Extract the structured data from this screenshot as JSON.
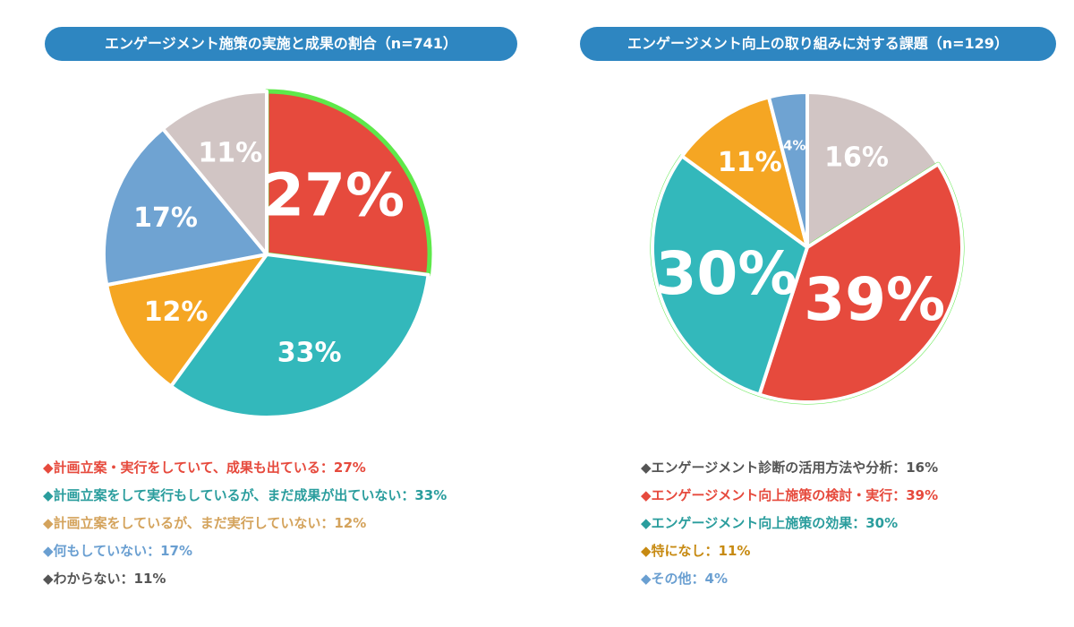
{
  "chart_data": [
    {
      "type": "pie",
      "title": "エンゲージメント施策の実施と成果の割合（n=741）",
      "slices": [
        {
          "label": "計画立案・実行をしていて、成果も出ている",
          "value": 27,
          "value_label": "27%",
          "legend_text": "◆計画立案・実行をしていて、成果も出ている：27%",
          "color": "#e64a3d",
          "text_color": "#e64a3d",
          "highlight": true,
          "big": true
        },
        {
          "label": "計画立案をして実行もしているが、まだ成果が出ていない",
          "value": 33,
          "value_label": "33%",
          "legend_text": "◆計画立案をして実行もしているが、まだ成果が出ていない：33%",
          "color": "#33b8bb",
          "text_color": "#2a9d9d",
          "highlight": false,
          "big": false
        },
        {
          "label": "計画立案をしているが、まだ実行していない",
          "value": 12,
          "value_label": "12%",
          "legend_text": "◆計画立案をしているが、まだ実行していない：12%",
          "color": "#f5a623",
          "text_color": "#d4a35c",
          "highlight": false,
          "big": false
        },
        {
          "label": "何もしていない",
          "value": 17,
          "value_label": "17%",
          "legend_text": "◆何もしていない：17%",
          "color": "#6fa3d2",
          "text_color": "#6a9fd1",
          "highlight": false,
          "big": false
        },
        {
          "label": "わからない",
          "value": 11,
          "value_label": "11%",
          "legend_text": "◆わからない：11%",
          "color": "#d1c5c4",
          "text_color": "#555555",
          "highlight": false,
          "big": false
        }
      ]
    },
    {
      "type": "pie",
      "title": "エンゲージメント向上の取り組みに対する課題（n=129）",
      "slices": [
        {
          "label": "エンゲージメント診断の活用方法や分析",
          "value": 16,
          "value_label": "16%",
          "legend_text": "◆エンゲージメント診断の活用方法や分析：16%",
          "color": "#d1c5c4",
          "text_color": "#555555",
          "highlight": false,
          "big": false
        },
        {
          "label": "エンゲージメント向上施策の検討・実行",
          "value": 39,
          "value_label": "39%",
          "legend_text": "◆エンゲージメント向上施策の検討・実行：39%",
          "color": "#e64a3d",
          "text_color": "#e64a3d",
          "highlight": true,
          "big": true
        },
        {
          "label": "エンゲージメント向上施策の効果",
          "value": 30,
          "value_label": "30%",
          "legend_text": "◆エンゲージメント向上施策の効果：30%",
          "color": "#33b8bb",
          "text_color": "#2a9d9d",
          "highlight": true,
          "big": true
        },
        {
          "label": "特になし",
          "value": 11,
          "value_label": "11%",
          "legend_text": "◆特になし：11%",
          "color": "#f5a623",
          "text_color": "#c78a12",
          "highlight": false,
          "big": false
        },
        {
          "label": "その他",
          "value": 4,
          "value_label": "4%",
          "legend_text": "◆その他：4%",
          "color": "#6fa3d2",
          "text_color": "#6a9fd1",
          "highlight": false,
          "big": false
        }
      ]
    }
  ]
}
